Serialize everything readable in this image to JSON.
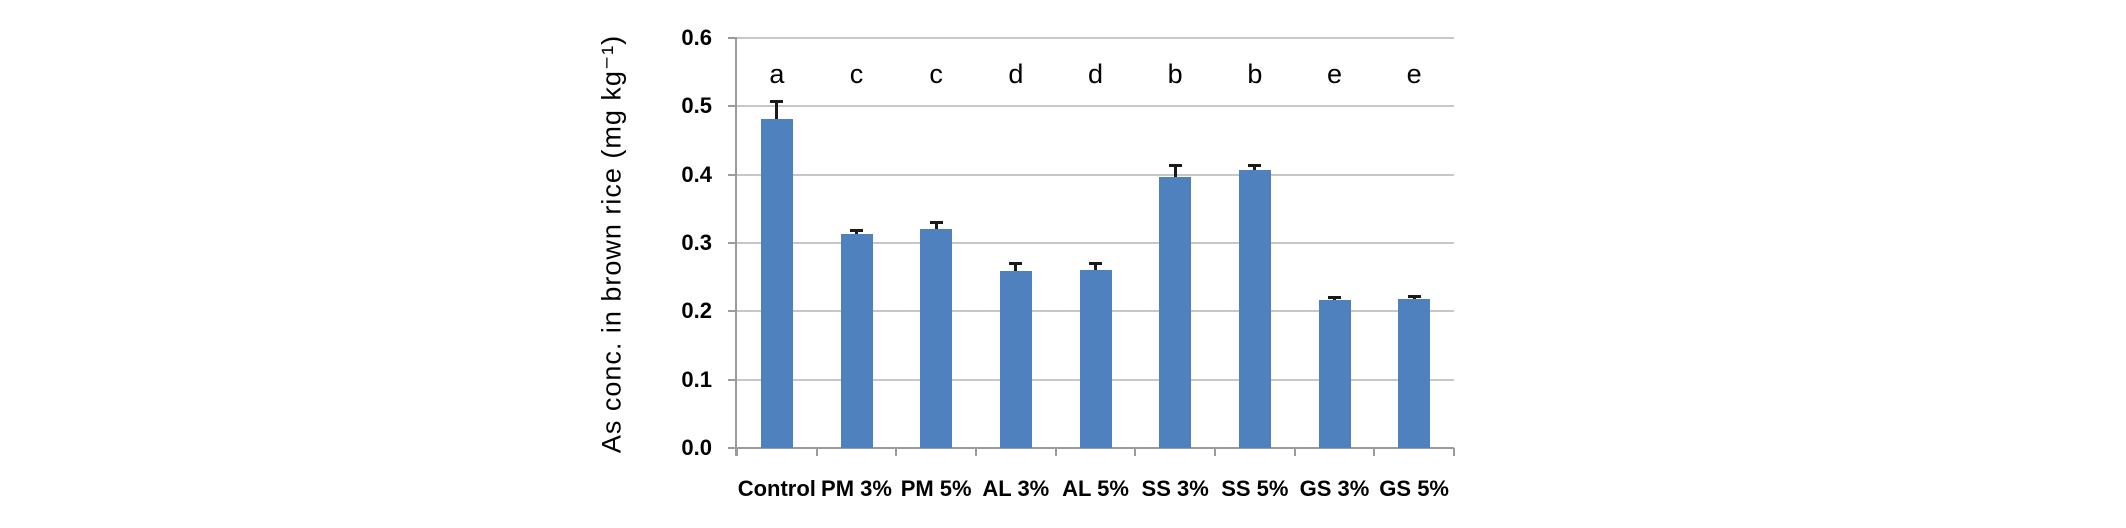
{
  "chart_data": {
    "type": "bar",
    "title": "",
    "xlabel": "",
    "ylabel": "As conc. in brown rice (mg kg⁻¹)",
    "categories": [
      "Control",
      "PM 3%",
      "PM 5%",
      "AL 3%",
      "AL 5%",
      "SS 3%",
      "SS 5%",
      "GS 3%",
      "GS 5%"
    ],
    "values": [
      0.482,
      0.313,
      0.321,
      0.259,
      0.261,
      0.397,
      0.407,
      0.216,
      0.218
    ],
    "error_bars_upper": [
      0.025,
      0.004,
      0.008,
      0.01,
      0.009,
      0.015,
      0.005,
      0.003,
      0.003
    ],
    "significance_letters": [
      "a",
      "c",
      "c",
      "d",
      "d",
      "b",
      "b",
      "e",
      "e"
    ],
    "letter_height_value": 0.547,
    "ylim": [
      0.0,
      0.6
    ],
    "y_tick_step": 0.1,
    "y_tick_labels": [
      "0.0",
      "0.1",
      "0.2",
      "0.3",
      "0.4",
      "0.5",
      "0.6"
    ],
    "grid": "horizontal-on",
    "legend": "none",
    "colors": {
      "bar_fill": "#4E81BD",
      "error_bar": "#1a1a1a",
      "gridline": "#c7c7c7",
      "axis_line": "#9b9b9b",
      "text": "#000000",
      "background": "#ffffff"
    }
  }
}
